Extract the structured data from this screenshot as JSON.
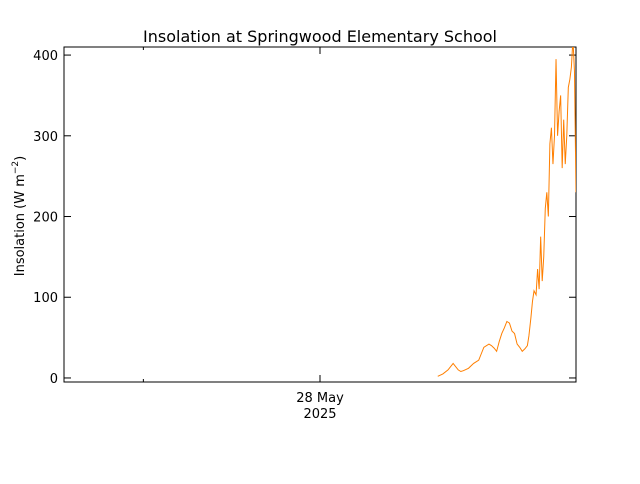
{
  "chart_data": {
    "type": "line",
    "title": "Insolation at Springwood Elementary School",
    "ylabel": "Insolation (W m",
    "ylabel_exponent": "−2",
    "ylabel_close": ")",
    "xlabel": "",
    "ylim": [
      -5,
      410
    ],
    "yticks": [
      0,
      100,
      200,
      300,
      400
    ],
    "ytick_labels": [
      "0",
      "100",
      "200",
      "300",
      "400"
    ],
    "xlim": [
      0,
      1
    ],
    "xtick_major": {
      "x": 0.5,
      "line1": "28 May",
      "line2": "2025"
    },
    "xtick_minor": [
      0.155,
      0.155
    ],
    "grid": false,
    "series": [
      {
        "color": "#ff7f00",
        "x": [
          0.73,
          0.74,
          0.75,
          0.755,
          0.76,
          0.77,
          0.775,
          0.78,
          0.79,
          0.8,
          0.81,
          0.815,
          0.82,
          0.83,
          0.835,
          0.84,
          0.845,
          0.85,
          0.855,
          0.86,
          0.865,
          0.87,
          0.875,
          0.88,
          0.885,
          0.89,
          0.895,
          0.9,
          0.905,
          0.908,
          0.912,
          0.915,
          0.918,
          0.922,
          0.925,
          0.928,
          0.931,
          0.934,
          0.937,
          0.94,
          0.943,
          0.946,
          0.949,
          0.952,
          0.955,
          0.958,
          0.961,
          0.964,
          0.967,
          0.97,
          0.973,
          0.976,
          0.979,
          0.982,
          0.985,
          0.988,
          0.991,
          0.994,
          0.997,
          1.0
        ],
        "y": [
          2,
          5,
          10,
          14,
          18,
          10,
          8,
          9,
          12,
          18,
          22,
          30,
          38,
          42,
          40,
          37,
          33,
          45,
          55,
          62,
          70,
          68,
          58,
          55,
          42,
          38,
          33,
          36,
          40,
          52,
          75,
          95,
          108,
          103,
          135,
          110,
          175,
          120,
          150,
          210,
          230,
          200,
          290,
          310,
          265,
          300,
          395,
          300,
          330,
          350,
          260,
          320,
          265,
          300,
          360,
          370,
          385,
          420,
          380,
          230
        ]
      }
    ]
  }
}
